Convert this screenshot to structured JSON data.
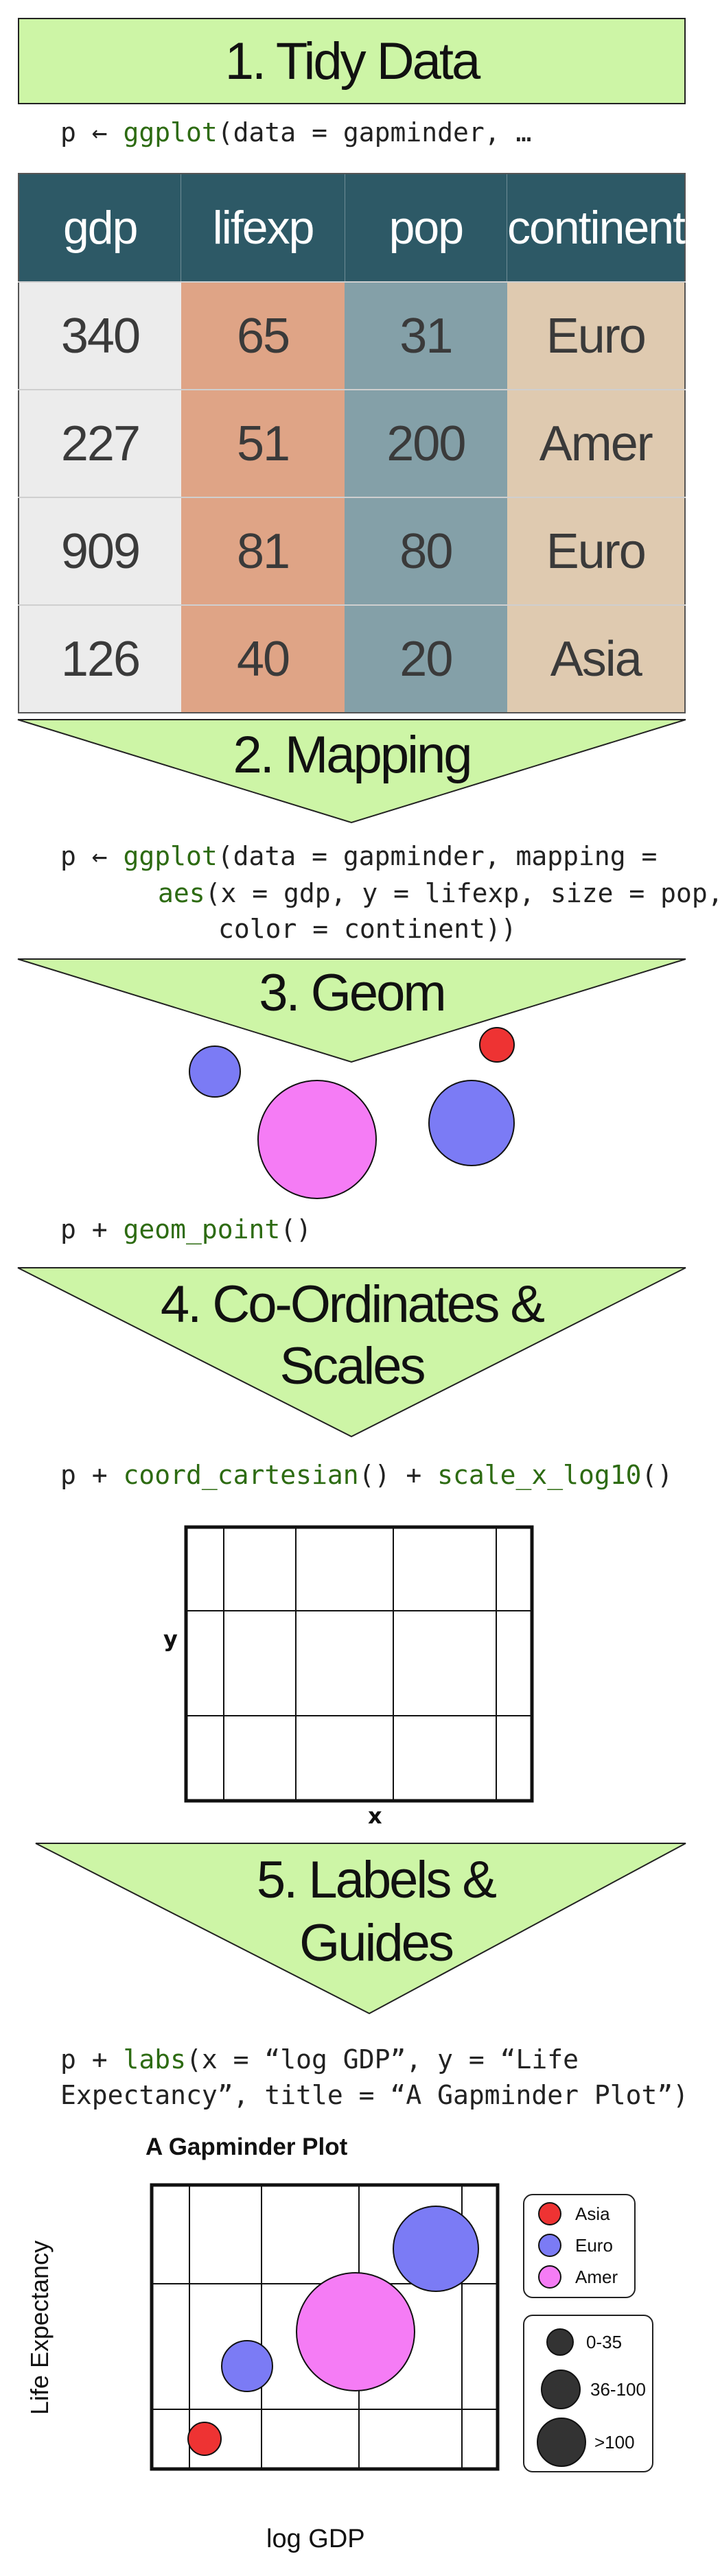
{
  "step1": {
    "title": "1. Tidy Data",
    "code": "p ← ggplot(data = gapminder, …"
  },
  "table": {
    "headers": [
      "gdp",
      "lifexp",
      "pop",
      "continent"
    ],
    "rows": [
      [
        "340",
        "65",
        "31",
        "Euro"
      ],
      [
        "227",
        "51",
        "200",
        "Amer"
      ],
      [
        "909",
        "81",
        "80",
        "Euro"
      ],
      [
        "126",
        "40",
        "20",
        "Asia"
      ]
    ],
    "column_colors": [
      "#ececec",
      "#dfa486",
      "#84a0a8",
      "#dfcab0"
    ],
    "header_color": "#2d5966"
  },
  "step2": {
    "title": "2. Mapping",
    "code_line1_prefix": "p ← ",
    "code_line1_fn": "ggplot",
    "code_line1_rest": "(data = gapminder, mapping =",
    "code_line2_fn": "aes",
    "code_line2_rest": "(x = gdp, y = lifexp, size = pop,",
    "code_line3": "color = continent))"
  },
  "step3": {
    "title": "3. Geom",
    "code_prefix": "p + ",
    "code_fn": "geom_point",
    "code_rest": "()"
  },
  "step4": {
    "title_line1": "4. Co-Ordinates &",
    "title_line2": "Scales",
    "code_prefix": "p + ",
    "code_fn1": "coord_cartesian",
    "code_mid": "() + ",
    "code_fn2": "scale_x_log10",
    "code_rest": "()",
    "xlabel": "x",
    "ylabel": "y"
  },
  "step5": {
    "title_line1": "5. Labels &",
    "title_line2": "Guides",
    "code_prefix": "p + ",
    "code_fn": "labs",
    "code_rest1": "(x = “log GDP”, y = “Life",
    "code_line2": "Expectancy”, title = “A Gapminder Plot”)"
  },
  "final_plot": {
    "title": "A Gapminder Plot",
    "xlabel": "log GDP",
    "ylabel": "Life Expectancy",
    "color_legend": [
      {
        "label": "Asia",
        "color": "#ee3333"
      },
      {
        "label": "Euro",
        "color": "#7b7bf5"
      },
      {
        "label": "Amer",
        "color": "#f57cf5"
      }
    ],
    "size_legend": [
      "0-35",
      "36-100",
      ">100"
    ]
  },
  "colors": {
    "accent_green": "#cdf5a6",
    "fn_green": "#2d6b12",
    "asia": "#ee3333",
    "euro": "#7b7bf5",
    "amer": "#f57cf5"
  }
}
